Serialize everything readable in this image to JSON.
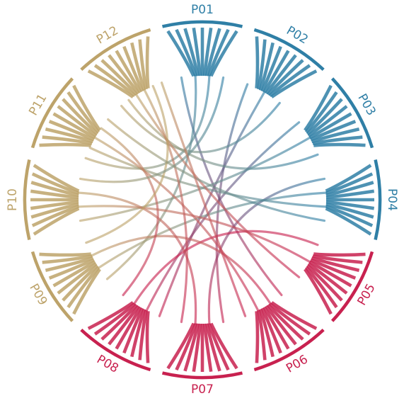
{
  "diagram": {
    "type": "chord",
    "nodes": [
      {
        "id": "P01",
        "label": "P01",
        "color": "#2f7fa6"
      },
      {
        "id": "P02",
        "label": "P02",
        "color": "#2f7fa6"
      },
      {
        "id": "P03",
        "label": "P03",
        "color": "#2f7fa6"
      },
      {
        "id": "P04",
        "label": "P04",
        "color": "#2f7fa6"
      },
      {
        "id": "P05",
        "label": "P05",
        "color": "#c8214f"
      },
      {
        "id": "P06",
        "label": "P06",
        "color": "#c8214f"
      },
      {
        "id": "P07",
        "label": "P07",
        "color": "#c8214f"
      },
      {
        "id": "P08",
        "label": "P08",
        "color": "#c8214f"
      },
      {
        "id": "P09",
        "label": "P09",
        "color": "#bda36a"
      },
      {
        "id": "P10",
        "label": "P10",
        "color": "#bda36a"
      },
      {
        "id": "P11",
        "label": "P11",
        "color": "#bda36a"
      },
      {
        "id": "P12",
        "label": "P12",
        "color": "#bda36a"
      }
    ],
    "links": [
      {
        "source": "P01",
        "target": "P06"
      },
      {
        "source": "P01",
        "target": "P09"
      },
      {
        "source": "P01",
        "target": "P11"
      },
      {
        "source": "P02",
        "target": "P07"
      },
      {
        "source": "P02",
        "target": "P08"
      },
      {
        "source": "P02",
        "target": "P12"
      },
      {
        "source": "P03",
        "target": "P08"
      },
      {
        "source": "P03",
        "target": "P10"
      },
      {
        "source": "P03",
        "target": "P12"
      },
      {
        "source": "P04",
        "target": "P07"
      },
      {
        "source": "P04",
        "target": "P09"
      },
      {
        "source": "P04",
        "target": "P11"
      },
      {
        "source": "P05",
        "target": "P08"
      },
      {
        "source": "P05",
        "target": "P10"
      },
      {
        "source": "P05",
        "target": "P12"
      },
      {
        "source": "P06",
        "target": "P09"
      },
      {
        "source": "P06",
        "target": "P11"
      },
      {
        "source": "P07",
        "target": "P10"
      },
      {
        "source": "P07",
        "target": "P12"
      },
      {
        "source": "P08",
        "target": "P11"
      },
      {
        "source": "P09",
        "target": "P12"
      },
      {
        "source": "P10",
        "target": "P01"
      },
      {
        "source": "P11",
        "target": "P04"
      },
      {
        "source": "P12",
        "target": "P06"
      }
    ]
  }
}
